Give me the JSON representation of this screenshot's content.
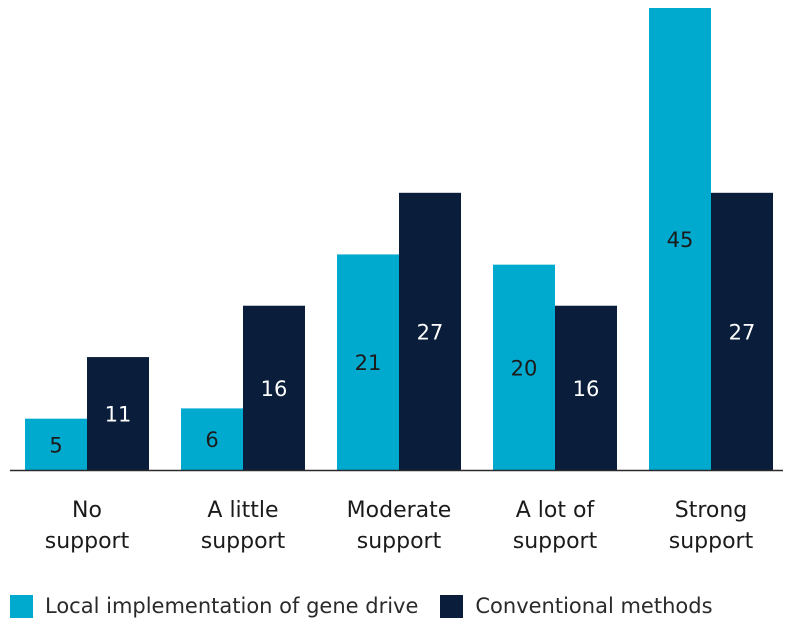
{
  "chart_data": {
    "type": "bar",
    "title": "",
    "xlabel": "",
    "ylabel": "",
    "categories": [
      [
        "No",
        "support"
      ],
      [
        "A little",
        "support"
      ],
      [
        "Moderate",
        "support"
      ],
      [
        "A lot of",
        "support"
      ],
      [
        "Strong",
        "support"
      ]
    ],
    "series": [
      {
        "name": "Local implementation of gene drive",
        "color": "#00a9ce",
        "label_color": "#1b1b1b",
        "values": [
          5,
          6,
          21,
          20,
          45
        ]
      },
      {
        "name": "Conventional methods",
        "color": "#0a1e3c",
        "label_color": "#ffffff",
        "values": [
          11,
          16,
          27,
          16,
          27
        ]
      }
    ],
    "ylim": [
      0,
      45
    ],
    "grid": false,
    "legend_position": "bottom-left"
  }
}
